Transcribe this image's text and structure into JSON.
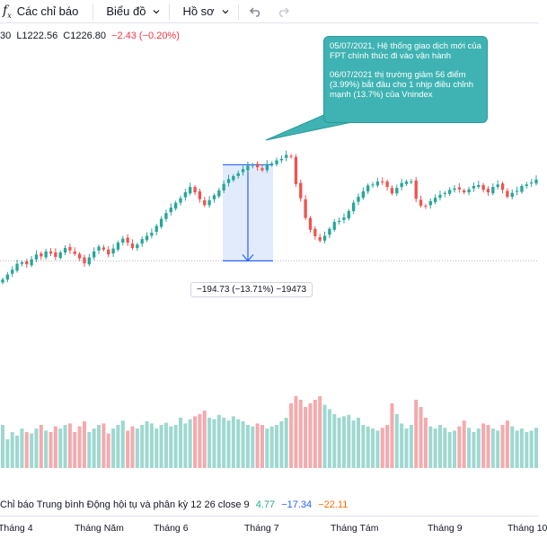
{
  "toolbar": {
    "fx_symbol": "f",
    "fx_sub": "x",
    "indicators_label": "Các chỉ báo",
    "chart_label": "Biểu đồ",
    "profile_label": "Hồ sơ",
    "undo_icon": "undo-icon",
    "redo_icon": "redo-icon"
  },
  "ohlc": {
    "high_tail": "30",
    "low": "L1222.56",
    "close": "C1226.80",
    "change": "−2.43 (−0.20%)"
  },
  "annotation": {
    "line1": "05/07/2021, Hệ thống giao dịch mới của FPT chính thức đi vào vận hành",
    "line2": "06/07/2021 thị trường giảm 56 điểm (3.99%) bắt đầu cho 1 nhịp điều chỉnh mạnh (13.7%) của Vnindex"
  },
  "measure": {
    "label": "−194.73 (−13.71%) −19473"
  },
  "indicator": {
    "name": "Chỉ báo Trung bình Động hội tụ và phân kỳ",
    "params": "12 26 close 9",
    "value1": "4.77",
    "value2": "−17.34",
    "value3": "−22.11"
  },
  "time_axis": {
    "ticks": [
      "Tháng 4",
      "Tháng Năm",
      "Tháng 6",
      "Tháng 7",
      "Tháng Tám",
      "Tháng 9",
      "Tháng 10"
    ]
  },
  "colors": {
    "up": "#26a69a",
    "down": "#ef5350",
    "vol_up": "#9ed8d0",
    "vol_down": "#f4aaad",
    "measure_fill": "#dbe6fb",
    "measure_line": "#2962ff",
    "callout_bg": "#3fb3b3"
  },
  "chart_data": {
    "type": "candlestick",
    "series": [
      {
        "name": "price",
        "closes": [
          1187,
          1197,
          1207,
          1219,
          1222,
          1218,
          1228,
          1238,
          1234,
          1244,
          1240,
          1233,
          1242,
          1251,
          1246,
          1239,
          1230,
          1220,
          1232,
          1244,
          1254,
          1248,
          1238,
          1250,
          1262,
          1270,
          1262,
          1251,
          1258,
          1269,
          1276,
          1282,
          1296,
          1310,
          1322,
          1333,
          1343,
          1352,
          1364,
          1375,
          1364,
          1350,
          1338,
          1348,
          1358,
          1368,
          1381,
          1391,
          1397,
          1403,
          1411,
          1418,
          1420,
          1415,
          1409,
          1421,
          1423,
          1429,
          1432,
          1440,
          1436,
          1381,
          1352,
          1312,
          1288,
          1275,
          1266,
          1276,
          1290,
          1304,
          1306,
          1313,
          1326,
          1343,
          1355,
          1366,
          1378,
          1380,
          1386,
          1384,
          1375,
          1362,
          1373,
          1383,
          1386,
          1386,
          1351,
          1337,
          1336,
          1346,
          1353,
          1359,
          1363,
          1369,
          1372,
          1370,
          1364,
          1370,
          1377,
          1379,
          1369,
          1364,
          1375,
          1380,
          1369,
          1355,
          1363,
          1367,
          1377,
          1380,
          1384,
          1390
        ]
      },
      {
        "name": "volume",
        "values": [
          0.6,
          0.4,
          0.5,
          0.45,
          0.55,
          0.5,
          0.48,
          0.55,
          0.6,
          0.52,
          0.5,
          0.58,
          0.55,
          0.6,
          0.62,
          0.5,
          0.58,
          0.65,
          0.5,
          0.55,
          0.6,
          0.62,
          0.48,
          0.55,
          0.6,
          0.66,
          0.52,
          0.58,
          0.55,
          0.6,
          0.65,
          0.62,
          0.55,
          0.6,
          0.63,
          0.58,
          0.6,
          0.7,
          0.62,
          0.68,
          0.72,
          0.75,
          0.8,
          0.7,
          0.68,
          0.74,
          0.7,
          0.66,
          0.72,
          0.68,
          0.65,
          0.6,
          0.58,
          0.62,
          0.6,
          0.55,
          0.58,
          0.6,
          0.65,
          0.7,
          0.9,
          1.0,
          0.95,
          0.85,
          0.9,
          0.95,
          1.0,
          0.88,
          0.82,
          0.75,
          0.7,
          0.72,
          0.74,
          0.66,
          0.7,
          0.6,
          0.58,
          0.55,
          0.52,
          0.56,
          0.6,
          0.9,
          0.75,
          0.62,
          0.55,
          0.6,
          0.95,
          0.85,
          0.7,
          0.58,
          0.55,
          0.6,
          0.56,
          0.5,
          0.52,
          0.58,
          0.66,
          0.56,
          0.5,
          0.55,
          0.62,
          0.6,
          0.55,
          0.52,
          0.6,
          0.66,
          0.58,
          0.52,
          0.55,
          0.5,
          0.52,
          0.56
        ]
      }
    ],
    "measure_from": 1420,
    "measure_to": 1225,
    "dotted_level": 1225
  }
}
